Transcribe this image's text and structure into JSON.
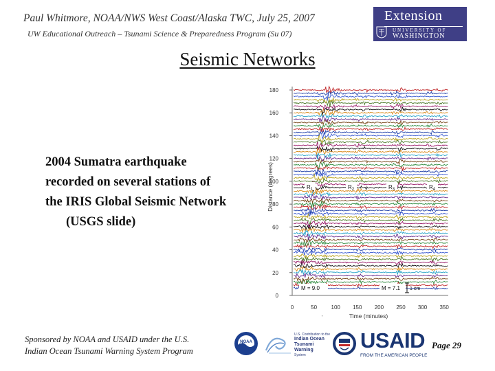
{
  "header": {
    "line1": "Paul Whitmore, NOAA/NWS West Coast/Alaska TWC, July 25, 2007",
    "line2": "UW Educational Outreach – Tsunami Science & Preparedness Program (Su 07)"
  },
  "logo_extension": {
    "word": "Extension",
    "small1": "UNIVERSITY OF",
    "small2": "WASHINGTON"
  },
  "slide_title": "Seismic Networks",
  "caption": {
    "line1": "2004 Sumatra earthquake",
    "line2": "recorded on several stations of",
    "line3": "the IRIS Global Seismic Network",
    "line4": "(USGS slide)"
  },
  "figure": {
    "ylabel": "Distance (degrees)",
    "xlabel": "Time (minutes)",
    "y_ticks": [
      "180",
      "160",
      "140",
      "120",
      "100",
      "80",
      "60",
      "40",
      "20",
      "0"
    ],
    "x_ticks": [
      "0",
      "50",
      "100",
      "150",
      "200",
      "250",
      "300",
      "350"
    ],
    "annotations": {
      "m1": "M = 9.0",
      "m2": "M = 7.1",
      "scale": "1 cm",
      "r1": "R",
      "r1_sub": "1",
      "r2": "R",
      "r2_sub": "2",
      "r3": "R",
      "r3_sub": "3",
      "r4": "R",
      "r4_sub": "4"
    },
    "trace_colors": [
      "#1f3fa8",
      "#c0282a",
      "#2e8b3e",
      "#7a4a1c",
      "#6a2f8f",
      "#2aa4c8",
      "#d88a1a",
      "#1b1b1b",
      "#9b1f6b",
      "#4c7a2a",
      "#b8a21f",
      "#3b5bd0"
    ],
    "trace_count": 62
  },
  "footer": {
    "line1": "Sponsored by NOAA and USAID under the U.S.",
    "line2": "Indian Ocean Tsunami Warning System Program"
  },
  "noaa_text": "NOAA",
  "io_text": {
    "l1": "U.S. Contribution to the",
    "l2": "Indian Ocean",
    "l3": "Tsunami Warning",
    "l4": "System"
  },
  "usaid": {
    "word": "USAID",
    "tag": "FROM THE AMERICAN PEOPLE"
  },
  "page_label": "Page 29"
}
